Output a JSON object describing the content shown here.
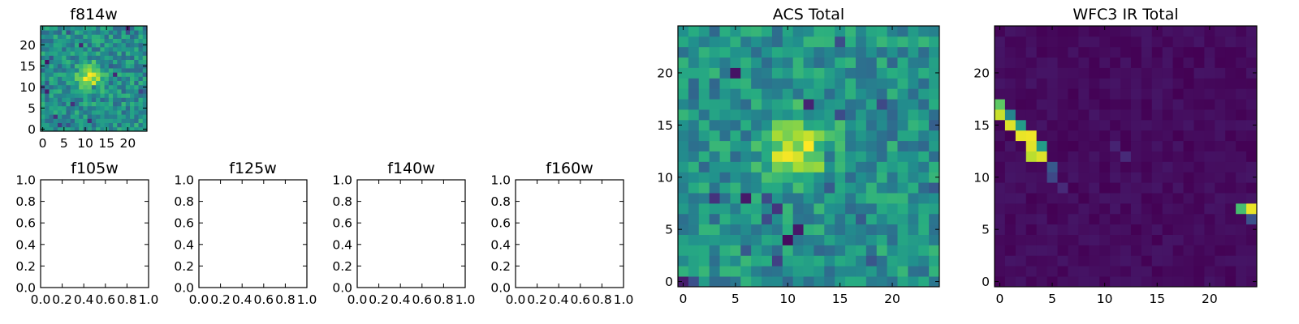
{
  "chart_data": [
    {
      "type": "heatmap",
      "title": "f814w",
      "grid_size": [
        25,
        25
      ],
      "colormap": "viridis",
      "xticks": [
        "0",
        "5",
        "10",
        "15",
        "20"
      ],
      "yticks": [
        "0",
        "5",
        "10",
        "15",
        "20"
      ],
      "xlim": [
        -0.5,
        24.5
      ],
      "ylim": [
        -0.5,
        24.5
      ],
      "background_level": 0.5,
      "noise_amplitude": 0.17,
      "sources": [
        {
          "x": 11,
          "y": 12.5,
          "peak": 0.45,
          "sigma": 2.0
        }
      ]
    },
    {
      "type": "empty",
      "title": "f105w",
      "xticks": [
        "0.0",
        "0.2",
        "0.4",
        "0.6",
        "0.8",
        "1.0"
      ],
      "yticks": [
        "0.0",
        "0.2",
        "0.4",
        "0.6",
        "0.8",
        "1.0"
      ],
      "xlim": [
        0,
        1
      ],
      "ylim": [
        0,
        1
      ]
    },
    {
      "type": "empty",
      "title": "f125w",
      "xticks": [
        "0.0",
        "0.2",
        "0.4",
        "0.6",
        "0.8",
        "1.0"
      ],
      "yticks": [
        "0.0",
        "0.2",
        "0.4",
        "0.6",
        "0.8",
        "1.0"
      ],
      "xlim": [
        0,
        1
      ],
      "ylim": [
        0,
        1
      ]
    },
    {
      "type": "empty",
      "title": "f140w",
      "xticks": [
        "0.0",
        "0.2",
        "0.4",
        "0.6",
        "0.8",
        "1.0"
      ],
      "yticks": [
        "0.0",
        "0.2",
        "0.4",
        "0.6",
        "0.8",
        "1.0"
      ],
      "xlim": [
        0,
        1
      ],
      "ylim": [
        0,
        1
      ]
    },
    {
      "type": "empty",
      "title": "f160w",
      "xticks": [
        "0.0",
        "0.2",
        "0.4",
        "0.6",
        "0.8",
        "1.0"
      ],
      "yticks": [
        "0.0",
        "0.2",
        "0.4",
        "0.6",
        "0.8",
        "1.0"
      ],
      "xlim": [
        0,
        1
      ],
      "ylim": [
        0,
        1
      ]
    },
    {
      "type": "heatmap",
      "title": "ACS Total",
      "grid_size": [
        25,
        25
      ],
      "colormap": "viridis",
      "xticks": [
        "0",
        "5",
        "10",
        "15",
        "20"
      ],
      "yticks": [
        "0",
        "5",
        "10",
        "15",
        "20"
      ],
      "xlim": [
        -0.5,
        24.5
      ],
      "ylim": [
        -0.5,
        24.5
      ],
      "background_level": 0.5,
      "noise_amplitude": 0.17,
      "sources": [
        {
          "x": 11,
          "y": 12.5,
          "peak": 0.45,
          "sigma": 2.2
        }
      ]
    },
    {
      "type": "heatmap",
      "title": "WFC3 IR Total",
      "grid_size": [
        25,
        25
      ],
      "colormap": "viridis",
      "xticks": [
        "0",
        "5",
        "10",
        "15",
        "20"
      ],
      "yticks": [
        "0",
        "5",
        "10",
        "15",
        "20"
      ],
      "xlim": [
        -0.5,
        24.5
      ],
      "ylim": [
        -0.5,
        24.5
      ],
      "background_level": 0.03,
      "noise_amplitude": 0.03,
      "bright_pixels": [
        {
          "x": 0,
          "y": 16,
          "v": 0.92
        },
        {
          "x": 0,
          "y": 17,
          "v": 0.75
        },
        {
          "x": 1,
          "y": 15,
          "v": 0.95
        },
        {
          "x": 1,
          "y": 16,
          "v": 0.45
        },
        {
          "x": 2,
          "y": 14,
          "v": 0.97
        },
        {
          "x": 2,
          "y": 15,
          "v": 0.55
        },
        {
          "x": 3,
          "y": 13,
          "v": 0.96
        },
        {
          "x": 3,
          "y": 14,
          "v": 0.98
        },
        {
          "x": 3,
          "y": 12,
          "v": 0.9
        },
        {
          "x": 4,
          "y": 12,
          "v": 0.95
        },
        {
          "x": 4,
          "y": 13,
          "v": 0.55
        },
        {
          "x": 5,
          "y": 11,
          "v": 0.28
        },
        {
          "x": 5,
          "y": 10,
          "v": 0.22
        },
        {
          "x": 6,
          "y": 9,
          "v": 0.12
        },
        {
          "x": 12,
          "y": 12,
          "v": 0.12
        },
        {
          "x": 11,
          "y": 13,
          "v": 0.1
        },
        {
          "x": 24,
          "y": 7,
          "v": 0.97
        },
        {
          "x": 23,
          "y": 7,
          "v": 0.7
        },
        {
          "x": 24,
          "y": 6,
          "v": 0.25
        }
      ]
    }
  ]
}
